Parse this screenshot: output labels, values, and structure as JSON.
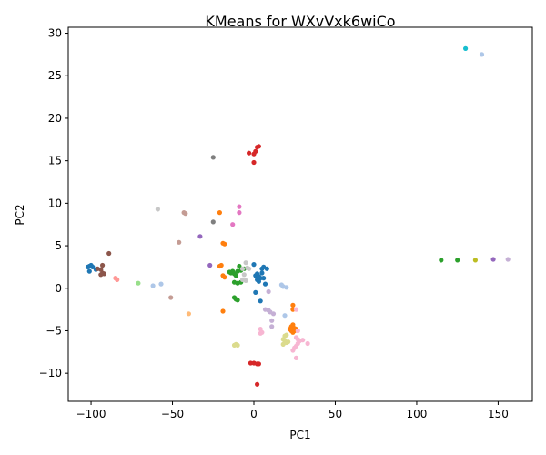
{
  "chart_data": {
    "type": "scatter",
    "title": "KMeans for WXvVxk6wiCo",
    "xlabel": "PC1",
    "ylabel": "PC2",
    "xlim": [
      -114,
      171
    ],
    "ylim": [
      -13.3,
      30.7
    ],
    "xticks": [
      -100,
      -50,
      0,
      50,
      100,
      150
    ],
    "yticks": [
      -10,
      -5,
      0,
      5,
      10,
      15,
      20,
      25,
      30
    ],
    "grid": false,
    "legend": "none",
    "series": [
      {
        "color": "#1f77b4",
        "points": [
          [
            -102,
            2.5
          ],
          [
            -101,
            2.6
          ],
          [
            -100,
            2.7
          ],
          [
            -99,
            2.5
          ],
          [
            -101,
            2.0
          ],
          [
            -97,
            2.2
          ],
          [
            0,
            2.8
          ],
          [
            1,
            1.5
          ],
          [
            2,
            1.7
          ],
          [
            3,
            1.4
          ],
          [
            4,
            1.2
          ],
          [
            3,
            0.8
          ],
          [
            5,
            2.3
          ],
          [
            6,
            2.5
          ],
          [
            8,
            2.3
          ],
          [
            6,
            1.2
          ],
          [
            7,
            0.5
          ],
          [
            1,
            -0.5
          ],
          [
            4,
            -1.5
          ],
          [
            2,
            1.0
          ],
          [
            5,
            1.8
          ]
        ]
      },
      {
        "color": "#ff7f0e",
        "points": [
          [
            -21,
            8.9
          ],
          [
            -19,
            5.3
          ],
          [
            -18,
            5.2
          ],
          [
            -20,
            2.7
          ],
          [
            -21,
            2.6
          ],
          [
            -19,
            1.5
          ],
          [
            -18,
            1.3
          ],
          [
            -19,
            -2.7
          ],
          [
            24,
            -2.0
          ],
          [
            24,
            -2.5
          ],
          [
            22,
            -4.8
          ],
          [
            23,
            -4.5
          ],
          [
            24,
            -4.3
          ],
          [
            25,
            -4.7
          ],
          [
            26,
            -4.8
          ],
          [
            23,
            -5.0
          ],
          [
            24,
            -5.2
          ],
          [
            25,
            -5.0
          ],
          [
            26,
            -4.9
          ]
        ]
      },
      {
        "color": "#2ca02c",
        "points": [
          [
            -15,
            1.9
          ],
          [
            -14,
            1.8
          ],
          [
            -13,
            2.0
          ],
          [
            -12,
            1.7
          ],
          [
            -11,
            1.5
          ],
          [
            -10,
            2.0
          ],
          [
            -9,
            2.6
          ],
          [
            -8,
            2.1
          ],
          [
            -12,
            0.7
          ],
          [
            -10,
            0.6
          ],
          [
            -8,
            0.7
          ],
          [
            -12,
            -1.1
          ],
          [
            -11,
            -1.3
          ],
          [
            -10,
            -1.4
          ],
          [
            -6,
            2.3
          ],
          [
            115,
            3.3
          ],
          [
            125,
            3.3
          ]
        ]
      },
      {
        "color": "#d62728",
        "points": [
          [
            1,
            16.1
          ],
          [
            2,
            16.6
          ],
          [
            3,
            16.7
          ],
          [
            -3,
            15.9
          ],
          [
            0,
            15.8
          ],
          [
            0,
            14.8
          ],
          [
            -2,
            -8.8
          ],
          [
            0,
            -8.8
          ],
          [
            2,
            -8.9
          ],
          [
            3,
            -8.9
          ],
          [
            2,
            -11.3
          ]
        ]
      },
      {
        "color": "#9467bd",
        "points": [
          [
            -33,
            6.1
          ],
          [
            -27,
            2.7
          ],
          [
            147,
            3.4
          ]
        ]
      },
      {
        "color": "#8c564b",
        "points": [
          [
            -94,
            2.2
          ],
          [
            -93,
            1.8
          ],
          [
            -94,
            1.6
          ],
          [
            -92,
            1.7
          ],
          [
            -93,
            2.7
          ],
          [
            -89,
            4.1
          ],
          [
            -96,
            2.3
          ]
        ]
      },
      {
        "color": "#e377c2",
        "points": [
          [
            -9,
            9.6
          ],
          [
            -9,
            8.9
          ],
          [
            -13,
            7.5
          ]
        ]
      },
      {
        "color": "#7f7f7f",
        "points": [
          [
            -25,
            15.4
          ],
          [
            -25,
            7.8
          ]
        ]
      },
      {
        "color": "#bcbd22",
        "points": [
          [
            136,
            3.3
          ]
        ]
      },
      {
        "color": "#17becf",
        "points": [
          [
            130,
            28.2
          ]
        ]
      },
      {
        "color": "#aec7e8",
        "points": [
          [
            -62,
            0.3
          ],
          [
            -57,
            0.5
          ],
          [
            17,
            0.4
          ],
          [
            18,
            0.2
          ],
          [
            20,
            0.1
          ],
          [
            19,
            -3.2
          ],
          [
            140,
            27.5
          ]
        ]
      },
      {
        "color": "#ffbb78",
        "points": [
          [
            -40,
            -3.0
          ]
        ]
      },
      {
        "color": "#98df8a",
        "points": [
          [
            -71,
            0.6
          ]
        ]
      },
      {
        "color": "#ff9896",
        "points": [
          [
            -85,
            1.2
          ],
          [
            -84,
            1.0
          ]
        ]
      },
      {
        "color": "#c5b0d5",
        "points": [
          [
            7,
            -2.5
          ],
          [
            9,
            -2.6
          ],
          [
            10,
            -2.8
          ],
          [
            12,
            -3.0
          ],
          [
            11,
            -3.8
          ],
          [
            11,
            -4.5
          ],
          [
            9,
            -0.4
          ],
          [
            156,
            3.4
          ]
        ]
      },
      {
        "color": "#c49c94",
        "points": [
          [
            -43,
            8.9
          ],
          [
            -42,
            8.8
          ],
          [
            -46,
            5.4
          ],
          [
            -51,
            -1.1
          ]
        ]
      },
      {
        "color": "#f7b6d2",
        "points": [
          [
            4,
            -4.8
          ],
          [
            5,
            -5.2
          ],
          [
            4,
            -5.3
          ],
          [
            27,
            -5.0
          ],
          [
            26,
            -5.8
          ],
          [
            27,
            -6.0
          ],
          [
            28,
            -6.2
          ],
          [
            30,
            -6.1
          ],
          [
            27,
            -6.5
          ],
          [
            26,
            -6.8
          ],
          [
            25,
            -7.0
          ],
          [
            24,
            -7.3
          ],
          [
            26,
            -8.2
          ],
          [
            33,
            -6.5
          ],
          [
            26,
            -2.5
          ]
        ]
      },
      {
        "color": "#c7c7c7",
        "points": [
          [
            -59,
            9.3
          ],
          [
            -5,
            3.0
          ],
          [
            -7,
            2.3
          ],
          [
            -4,
            2.4
          ],
          [
            -3,
            2.3
          ],
          [
            -6,
            1.6
          ],
          [
            -5,
            0.9
          ],
          [
            -7,
            1.0
          ]
        ]
      },
      {
        "color": "#dbdb8d",
        "points": [
          [
            -12,
            -6.7
          ],
          [
            -11,
            -6.6
          ],
          [
            -10,
            -6.7
          ],
          [
            19,
            -5.6
          ],
          [
            20,
            -5.5
          ],
          [
            18,
            -6.0
          ],
          [
            19,
            -6.2
          ],
          [
            20,
            -6.4
          ],
          [
            18,
            -6.6
          ],
          [
            21,
            -6.3
          ]
        ]
      }
    ]
  }
}
